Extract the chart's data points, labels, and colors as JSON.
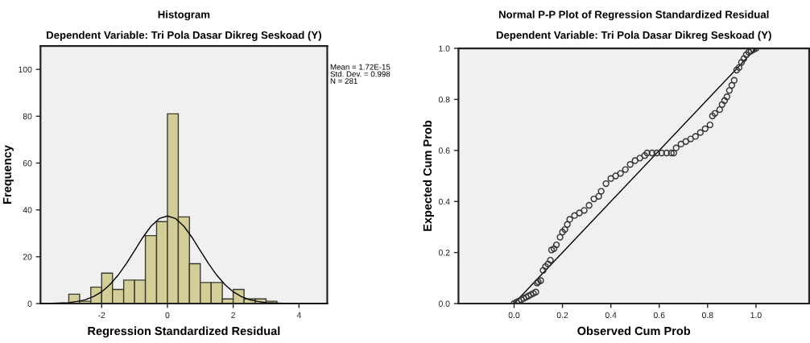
{
  "chart_data": [
    {
      "type": "histogram",
      "title": "Histogram",
      "subtitle": "Dependent Variable: Tri Pola Dasar Dikreg Seskoad (Y)",
      "xlabel": "Regression Standardized Residual",
      "ylabel": "Frequency",
      "bins": [
        -3,
        -2.67,
        -2.33,
        -2,
        -1.67,
        -1.33,
        -1,
        -0.67,
        -0.33,
        0,
        0.33,
        0.67,
        1,
        1.33,
        1.67,
        2,
        2.33,
        2.67,
        3,
        3.33
      ],
      "values": [
        4,
        1,
        7,
        13,
        6,
        10,
        10,
        29,
        35,
        81,
        37,
        17,
        9,
        9,
        2,
        6,
        2,
        2,
        1
      ],
      "color": "#d3ce97",
      "series": [
        {
          "type": "line",
          "color": "#000000",
          "x": [
            -3.86,
            -3.5,
            -3,
            -2.75,
            -2.5,
            -2.25,
            -2,
            -1.75,
            -1.5,
            -1.25,
            -1,
            -0.75,
            -0.5,
            -0.25,
            0,
            0.25,
            0.5,
            0.75,
            1,
            1.25,
            1.5,
            1.75,
            2,
            2.25,
            2.5,
            2.75,
            3,
            3.5,
            4,
            4.86
          ],
          "values": [
            0,
            0.1,
            0.4,
            0.9,
            1.6,
            3,
            5,
            8.1,
            12.1,
            17.1,
            22.6,
            28.2,
            33,
            36.3,
            37.4,
            36.3,
            33,
            28.2,
            22.6,
            17.1,
            12.1,
            8.1,
            5,
            3,
            1.6,
            0.9,
            0.4,
            0.1,
            0,
            0
          ]
        }
      ],
      "xlim": [
        -3.86,
        4.86
      ],
      "ylim": [
        0,
        110
      ],
      "xticks": [
        -2,
        0,
        2,
        4
      ],
      "yticks": [
        0,
        20,
        40,
        60,
        80,
        100
      ],
      "annotations": [
        "Mean = 1.72E-15",
        "Std. Dev. = 0.998",
        "N = 281"
      ],
      "grid": false,
      "legend": false
    },
    {
      "type": "scatter",
      "title": "Normal P-P Plot of Regression Standardized Residual",
      "subtitle": "Dependent Variable: Tri Pola Dasar Dikreg Seskoad (Y)",
      "xlabel": "Observed Cum Prob",
      "ylabel": "Expected Cum Prob",
      "series": [
        {
          "type": "scatter",
          "color": "#333333",
          "marker": "circle",
          "x": [
            0.0,
            0.01,
            0.02,
            0.03,
            0.04,
            0.05,
            0.06,
            0.07,
            0.08,
            0.09,
            0.095,
            0.1,
            0.11,
            0.12,
            0.13,
            0.14,
            0.15,
            0.155,
            0.165,
            0.175,
            0.19,
            0.2,
            0.21,
            0.22,
            0.23,
            0.25,
            0.27,
            0.29,
            0.31,
            0.33,
            0.35,
            0.36,
            0.38,
            0.4,
            0.42,
            0.44,
            0.46,
            0.48,
            0.5,
            0.52,
            0.54,
            0.55,
            0.57,
            0.59,
            0.61,
            0.63,
            0.65,
            0.66,
            0.67,
            0.69,
            0.71,
            0.73,
            0.75,
            0.77,
            0.79,
            0.81,
            0.82,
            0.83,
            0.85,
            0.86,
            0.87,
            0.88,
            0.89,
            0.9,
            0.91,
            0.92,
            0.93,
            0.94,
            0.95,
            0.96,
            0.97,
            0.98,
            0.99,
            1.0
          ],
          "values": [
            0.0,
            0.005,
            0.01,
            0.015,
            0.02,
            0.025,
            0.03,
            0.035,
            0.04,
            0.045,
            0.08,
            0.085,
            0.09,
            0.13,
            0.145,
            0.155,
            0.17,
            0.21,
            0.215,
            0.23,
            0.26,
            0.28,
            0.29,
            0.31,
            0.33,
            0.345,
            0.355,
            0.365,
            0.385,
            0.41,
            0.42,
            0.44,
            0.47,
            0.49,
            0.5,
            0.51,
            0.525,
            0.545,
            0.56,
            0.57,
            0.58,
            0.59,
            0.59,
            0.59,
            0.59,
            0.59,
            0.59,
            0.59,
            0.61,
            0.625,
            0.635,
            0.645,
            0.655,
            0.67,
            0.685,
            0.7,
            0.735,
            0.745,
            0.76,
            0.78,
            0.795,
            0.81,
            0.835,
            0.855,
            0.875,
            0.915,
            0.925,
            0.945,
            0.96,
            0.975,
            0.985,
            0.99,
            0.995,
            1.0
          ]
        },
        {
          "type": "line",
          "color": "#000000",
          "x": [
            0,
            1
          ],
          "values": [
            0,
            1
          ]
        }
      ],
      "xlim": [
        -0.23,
        1.22
      ],
      "ylim": [
        0,
        1
      ],
      "xticks": [
        {
          "value": 0,
          "label": "0.0"
        },
        {
          "value": 0.2,
          "label": "0.2"
        },
        {
          "value": 0.4,
          "label": "0.4"
        },
        {
          "value": 0.6,
          "label": "0.6"
        },
        {
          "value": 0.8,
          "label": "0.8"
        },
        {
          "value": 1,
          "label": "1.0"
        }
      ],
      "yticks": [
        {
          "value": 0,
          "label": "0.0"
        },
        {
          "value": 0.2,
          "label": "0.2"
        },
        {
          "value": 0.4,
          "label": "0.4"
        },
        {
          "value": 0.6,
          "label": "0.6"
        },
        {
          "value": 0.8,
          "label": "0.8"
        },
        {
          "value": 1,
          "label": "1.0"
        }
      ],
      "grid": false,
      "legend": false
    }
  ]
}
